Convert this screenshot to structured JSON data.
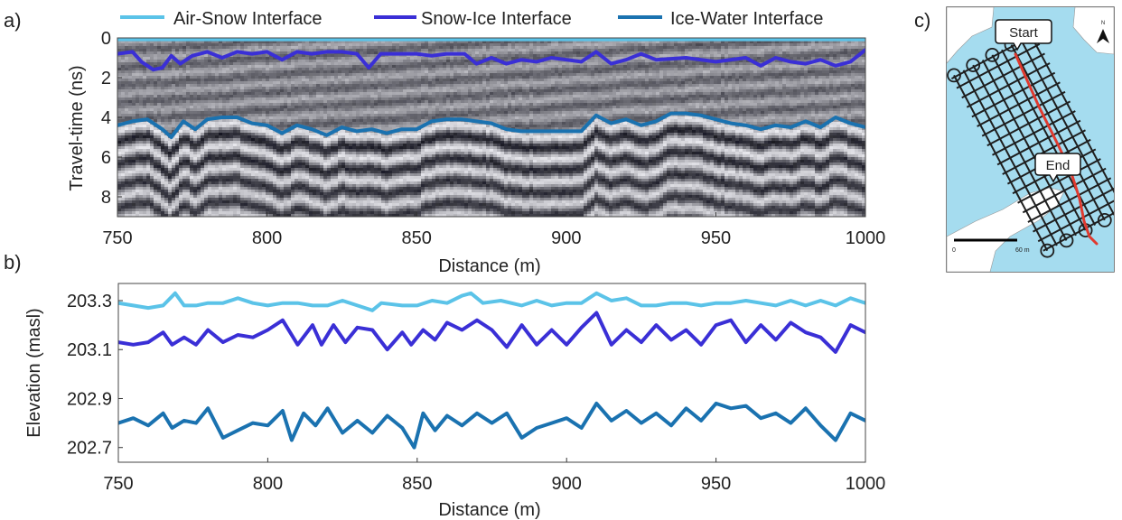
{
  "panels": {
    "a_label": "a)",
    "b_label": "b)",
    "c_label": "c)"
  },
  "legend": {
    "items": [
      {
        "label": "Air-Snow Interface",
        "color": "#5bc3e8"
      },
      {
        "label": "Snow-Ice Interface",
        "color": "#3a2fd6"
      },
      {
        "label": "Ice-Water Interface",
        "color": "#1a72b0"
      }
    ]
  },
  "map": {
    "start_label": "Start",
    "end_label": "End",
    "north_label": "N",
    "scale_start": "0",
    "scale_end": "60 m",
    "colors": {
      "water": "#a5dcef",
      "land": "#ffffff",
      "route": "#e03a2f",
      "grid": "#1e1e1e"
    }
  },
  "chart_data": [
    {
      "type": "line",
      "panel": "a",
      "xlabel": "Distance (m)",
      "ylabel": "Travel-time (ns)",
      "xlim": [
        750,
        1000
      ],
      "ylim": [
        0,
        9
      ],
      "y_reversed": true,
      "xticks": [
        750,
        800,
        850,
        900,
        950,
        1000
      ],
      "yticks": [
        0,
        2,
        4,
        6,
        8
      ],
      "background": "GPR radargram",
      "series": [
        {
          "name": "Air-Snow Interface",
          "color": "#5bc3e8",
          "x": [
            750,
            1000
          ],
          "y": [
            0.05,
            0.05
          ]
        },
        {
          "name": "Snow-Ice Interface",
          "color": "#3a2fd6",
          "x": [
            750,
            755,
            758,
            762,
            765,
            768,
            771,
            775,
            780,
            785,
            790,
            795,
            800,
            805,
            810,
            815,
            820,
            825,
            830,
            834,
            838,
            845,
            850,
            855,
            860,
            866,
            870,
            875,
            880,
            885,
            890,
            895,
            900,
            905,
            910,
            915,
            920,
            925,
            930,
            940,
            950,
            960,
            965,
            970,
            975,
            980,
            985,
            990,
            995,
            1000
          ],
          "y": [
            0.8,
            0.7,
            1.2,
            1.6,
            1.5,
            0.9,
            1.3,
            0.9,
            0.7,
            1.0,
            0.7,
            0.8,
            0.7,
            1.1,
            0.7,
            0.8,
            0.7,
            0.7,
            0.8,
            1.5,
            0.8,
            0.8,
            0.8,
            0.9,
            0.8,
            0.8,
            1.3,
            1.0,
            1.3,
            1.1,
            1.2,
            1.0,
            1.1,
            1.2,
            0.7,
            1.3,
            1.1,
            0.8,
            1.1,
            1.0,
            1.2,
            1.0,
            1.4,
            1.0,
            1.2,
            1.3,
            1.1,
            1.4,
            1.2,
            0.6
          ]
        },
        {
          "name": "Ice-Water Interface",
          "color": "#1a72b0",
          "x": [
            750,
            755,
            760,
            765,
            768,
            772,
            776,
            780,
            785,
            790,
            795,
            800,
            805,
            810,
            815,
            820,
            825,
            830,
            835,
            840,
            845,
            850,
            855,
            860,
            865,
            870,
            875,
            880,
            885,
            890,
            895,
            900,
            905,
            910,
            915,
            920,
            925,
            930,
            935,
            940,
            945,
            950,
            955,
            960,
            965,
            970,
            975,
            980,
            985,
            990,
            995,
            1000
          ],
          "y": [
            4.4,
            4.2,
            4.1,
            4.6,
            5.0,
            4.2,
            4.6,
            4.1,
            4.0,
            4.0,
            4.3,
            4.4,
            4.8,
            4.4,
            4.6,
            4.9,
            4.5,
            4.7,
            4.6,
            4.8,
            4.6,
            4.6,
            4.2,
            4.1,
            4.1,
            4.2,
            4.3,
            4.6,
            4.7,
            4.7,
            4.7,
            4.7,
            4.7,
            3.9,
            4.3,
            4.1,
            4.4,
            4.2,
            3.8,
            3.8,
            3.9,
            4.1,
            4.3,
            4.4,
            4.6,
            4.4,
            4.5,
            4.2,
            4.5,
            4.0,
            4.3,
            4.5
          ]
        }
      ]
    },
    {
      "type": "line",
      "panel": "b",
      "xlabel": "Distance (m)",
      "ylabel": "Elevation (masl)",
      "xlim": [
        750,
        1000
      ],
      "ylim": [
        202.64,
        203.37
      ],
      "xticks": [
        750,
        800,
        850,
        900,
        950,
        1000
      ],
      "yticks": [
        202.7,
        202.9,
        203.1,
        203.3
      ],
      "ytick_labels": [
        "202.7",
        "202.9",
        "203.1",
        "203.3"
      ],
      "series": [
        {
          "name": "Air-Snow Interface",
          "color": "#5bc3e8",
          "x": [
            750,
            755,
            760,
            765,
            769,
            772,
            776,
            780,
            785,
            790,
            795,
            800,
            805,
            810,
            815,
            820,
            825,
            830,
            835,
            838,
            845,
            850,
            855,
            860,
            865,
            868,
            872,
            878,
            885,
            890,
            895,
            900,
            905,
            910,
            915,
            920,
            925,
            930,
            935,
            940,
            945,
            950,
            955,
            960,
            965,
            970,
            975,
            980,
            985,
            990,
            995,
            1000
          ],
          "y": [
            203.29,
            203.28,
            203.27,
            203.28,
            203.33,
            203.28,
            203.28,
            203.29,
            203.29,
            203.31,
            203.29,
            203.28,
            203.29,
            203.29,
            203.28,
            203.28,
            203.3,
            203.28,
            203.26,
            203.29,
            203.28,
            203.28,
            203.3,
            203.29,
            203.32,
            203.33,
            203.29,
            203.3,
            203.28,
            203.3,
            203.28,
            203.29,
            203.29,
            203.33,
            203.3,
            203.31,
            203.28,
            203.28,
            203.29,
            203.29,
            203.28,
            203.29,
            203.29,
            203.3,
            203.29,
            203.28,
            203.3,
            203.28,
            203.3,
            203.28,
            203.31,
            203.29
          ]
        },
        {
          "name": "Snow-Ice Interface",
          "color": "#3a2fd6",
          "x": [
            750,
            755,
            760,
            765,
            768,
            772,
            776,
            780,
            785,
            790,
            795,
            800,
            805,
            810,
            815,
            818,
            822,
            826,
            830,
            835,
            840,
            845,
            848,
            852,
            856,
            860,
            865,
            870,
            875,
            880,
            885,
            890,
            895,
            900,
            905,
            910,
            915,
            920,
            925,
            930,
            935,
            940,
            945,
            950,
            955,
            960,
            965,
            970,
            975,
            980,
            985,
            990,
            995,
            1000
          ],
          "y": [
            203.13,
            203.12,
            203.13,
            203.17,
            203.12,
            203.15,
            203.12,
            203.18,
            203.13,
            203.16,
            203.15,
            203.18,
            203.22,
            203.12,
            203.2,
            203.12,
            203.2,
            203.13,
            203.19,
            203.18,
            203.1,
            203.17,
            203.12,
            203.18,
            203.14,
            203.21,
            203.18,
            203.22,
            203.18,
            203.11,
            203.2,
            203.12,
            203.18,
            203.12,
            203.19,
            203.25,
            203.12,
            203.18,
            203.13,
            203.2,
            203.14,
            203.18,
            203.12,
            203.2,
            203.22,
            203.13,
            203.2,
            203.14,
            203.21,
            203.17,
            203.15,
            203.09,
            203.2,
            203.17
          ]
        },
        {
          "name": "Ice-Water Interface",
          "color": "#1a72b0",
          "x": [
            750,
            755,
            760,
            765,
            768,
            772,
            776,
            780,
            785,
            790,
            795,
            800,
            805,
            808,
            812,
            816,
            820,
            825,
            830,
            835,
            840,
            845,
            849,
            852,
            856,
            860,
            865,
            870,
            875,
            880,
            885,
            890,
            895,
            900,
            905,
            910,
            915,
            920,
            925,
            930,
            935,
            940,
            945,
            950,
            955,
            960,
            965,
            970,
            975,
            980,
            985,
            990,
            995,
            1000
          ],
          "y": [
            202.8,
            202.82,
            202.79,
            202.84,
            202.78,
            202.81,
            202.8,
            202.86,
            202.74,
            202.77,
            202.8,
            202.79,
            202.85,
            202.73,
            202.84,
            202.79,
            202.86,
            202.76,
            202.81,
            202.76,
            202.83,
            202.78,
            202.7,
            202.84,
            202.77,
            202.83,
            202.79,
            202.84,
            202.8,
            202.84,
            202.74,
            202.78,
            202.8,
            202.82,
            202.78,
            202.88,
            202.81,
            202.85,
            202.8,
            202.84,
            202.79,
            202.86,
            202.81,
            202.88,
            202.86,
            202.87,
            202.82,
            202.84,
            202.8,
            202.86,
            202.79,
            202.73,
            202.84,
            202.81
          ]
        }
      ]
    }
  ]
}
